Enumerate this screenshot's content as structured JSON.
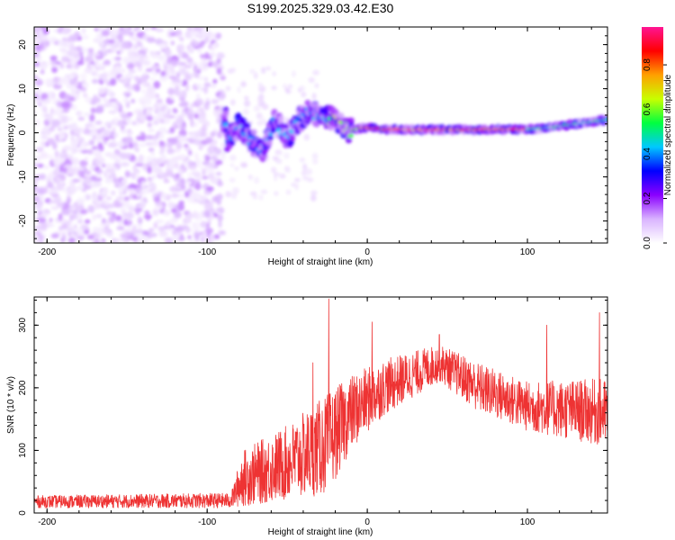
{
  "figure_title": "S199.2025.329.03.42.E30",
  "chart_data": [
    {
      "type": "heatmap",
      "name": "spectrogram",
      "xlabel": "Height of straight line (km)",
      "ylabel": "Frequency (Hz)",
      "xlim": [
        -208,
        150
      ],
      "ylim": [
        -25,
        24
      ],
      "xticks": [
        -200,
        -100,
        0,
        100
      ],
      "yticks": [
        20,
        10,
        0,
        -10,
        -20
      ],
      "colorbar": {
        "label": "Normalized spectral amplitude",
        "range": [
          0,
          0.97
        ],
        "ticks": [
          "0.0",
          "0.2",
          "0.4",
          "0.6",
          "0.8"
        ],
        "tick_values": [
          0,
          0.2,
          0.4,
          0.6,
          0.8
        ],
        "colors": [
          "#ffffff",
          "#d9b3ff",
          "#8a00ff",
          "#0000ff",
          "#00c8ff",
          "#00ff40",
          "#c8ff00",
          "#ffa000",
          "#ff0000",
          "#ff1493"
        ]
      },
      "signal_trace": [
        {
          "x": -88,
          "f": -1.5
        },
        {
          "x": -80,
          "f": 2
        },
        {
          "x": -72,
          "f": -2
        },
        {
          "x": -65,
          "f": -4
        },
        {
          "x": -58,
          "f": 3
        },
        {
          "x": -50,
          "f": -1
        },
        {
          "x": -42,
          "f": 3
        },
        {
          "x": -35,
          "f": 5
        },
        {
          "x": -28,
          "f": 3.5
        },
        {
          "x": -20,
          "f": 3
        },
        {
          "x": -15,
          "f": 1.5
        },
        {
          "x": -10,
          "f": 0.5
        },
        {
          "x": -5,
          "f": 1
        },
        {
          "x": 0,
          "f": 1.2
        },
        {
          "x": 10,
          "f": 0.8
        },
        {
          "x": 30,
          "f": 0.7
        },
        {
          "x": 60,
          "f": 0.7
        },
        {
          "x": 95,
          "f": 0.8
        },
        {
          "x": 110,
          "f": 1
        },
        {
          "x": 130,
          "f": 2
        },
        {
          "x": 150,
          "f": 3
        }
      ]
    },
    {
      "type": "line",
      "name": "snr",
      "xlabel": "Height of straight line (km)",
      "ylabel": "SNR (10 * v/v)",
      "xlim": [
        -208,
        150
      ],
      "ylim": [
        0,
        345
      ],
      "xticks": [
        -200,
        -100,
        0,
        100
      ],
      "yticks": [
        0,
        100,
        200,
        300
      ],
      "color": "#ee3333",
      "envelope": [
        {
          "x": -208,
          "mean": 18,
          "spread": 10
        },
        {
          "x": -85,
          "mean": 20,
          "spread": 12
        },
        {
          "x": -78,
          "mean": 55,
          "spread": 45
        },
        {
          "x": -50,
          "mean": 80,
          "spread": 60
        },
        {
          "x": -25,
          "mean": 110,
          "spread": 80
        },
        {
          "x": -10,
          "mean": 160,
          "spread": 60
        },
        {
          "x": 10,
          "mean": 200,
          "spread": 45
        },
        {
          "x": 45,
          "mean": 240,
          "spread": 30
        },
        {
          "x": 70,
          "mean": 200,
          "spread": 40
        },
        {
          "x": 100,
          "mean": 170,
          "spread": 40
        },
        {
          "x": 150,
          "mean": 160,
          "spread": 55
        }
      ],
      "peaks": [
        {
          "x": -24,
          "y": 342
        },
        {
          "x": -34,
          "y": 240
        },
        {
          "x": 3,
          "y": 305
        },
        {
          "x": 45,
          "y": 285
        },
        {
          "x": 112,
          "y": 300
        },
        {
          "x": 145,
          "y": 320
        }
      ]
    }
  ]
}
